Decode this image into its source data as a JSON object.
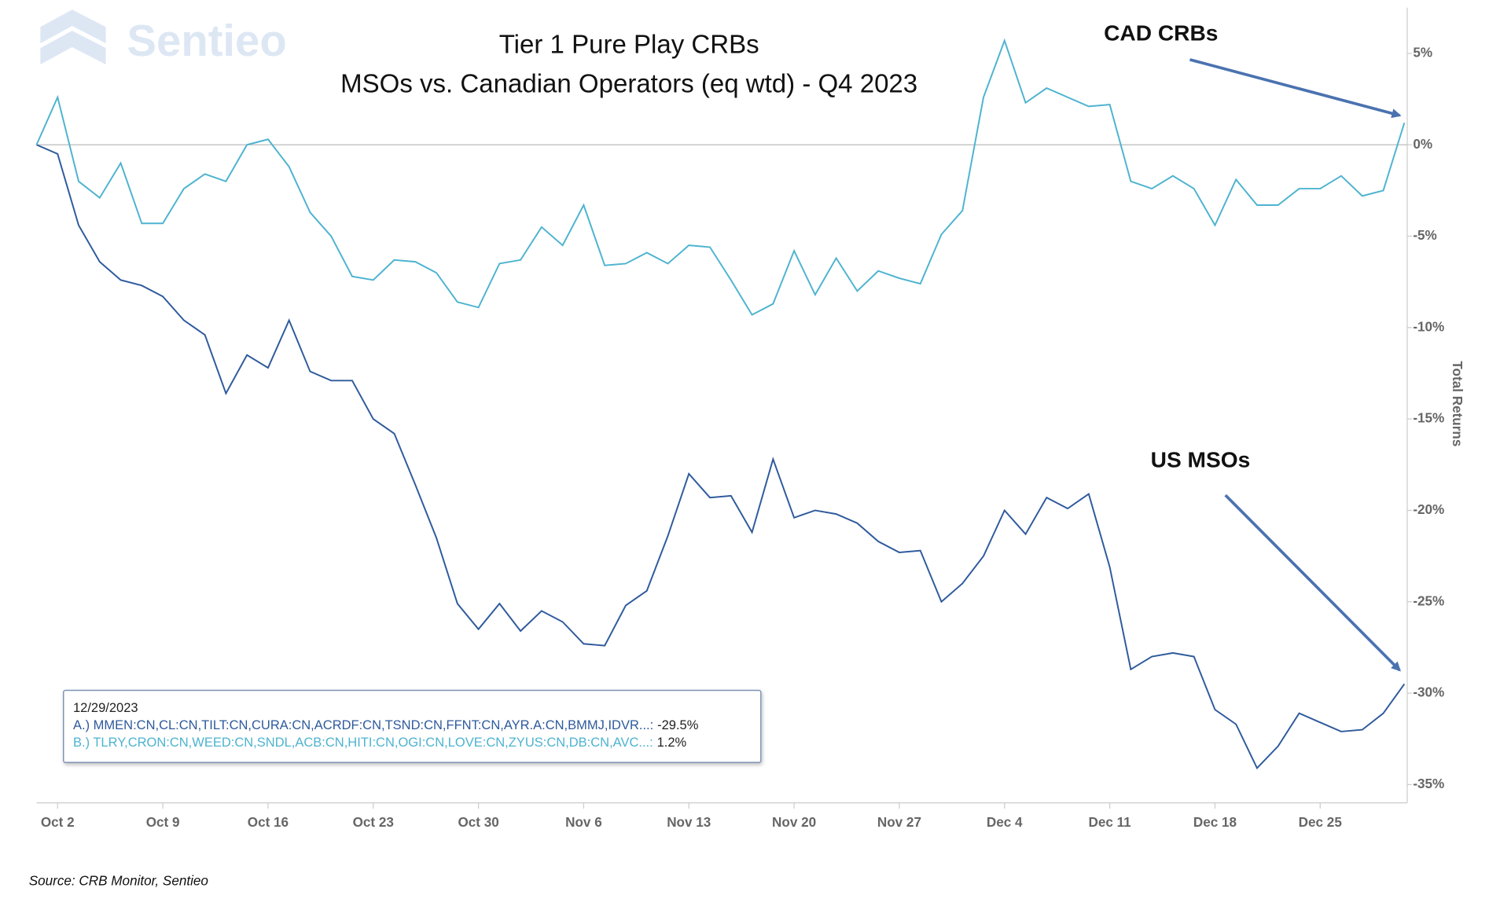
{
  "chart_data": {
    "type": "line",
    "title": "Tier 1 Pure Play CRBs",
    "subtitle": "MSOs vs. Canadian Operators (eq wtd) - Q4 2023",
    "watermark": "Sentieo",
    "y_axis_label": "Total Returns",
    "source": "Source: CRB Monitor, Sentieo",
    "x": [
      "2023-09-29",
      "2023-10-02",
      "2023-10-03",
      "2023-10-04",
      "2023-10-05",
      "2023-10-06",
      "2023-10-09",
      "2023-10-10",
      "2023-10-11",
      "2023-10-12",
      "2023-10-13",
      "2023-10-16",
      "2023-10-17",
      "2023-10-18",
      "2023-10-19",
      "2023-10-20",
      "2023-10-23",
      "2023-10-24",
      "2023-10-25",
      "2023-10-26",
      "2023-10-27",
      "2023-10-30",
      "2023-10-31",
      "2023-11-01",
      "2023-11-02",
      "2023-11-03",
      "2023-11-06",
      "2023-11-07",
      "2023-11-08",
      "2023-11-09",
      "2023-11-10",
      "2023-11-13",
      "2023-11-14",
      "2023-11-15",
      "2023-11-16",
      "2023-11-17",
      "2023-11-20",
      "2023-11-21",
      "2023-11-22",
      "2023-11-23",
      "2023-11-24",
      "2023-11-27",
      "2023-11-28",
      "2023-11-29",
      "2023-11-30",
      "2023-12-01",
      "2023-12-04",
      "2023-12-05",
      "2023-12-06",
      "2023-12-07",
      "2023-12-08",
      "2023-12-11",
      "2023-12-12",
      "2023-12-13",
      "2023-12-14",
      "2023-12-15",
      "2023-12-18",
      "2023-12-19",
      "2023-12-20",
      "2023-12-21",
      "2023-12-22",
      "2023-12-25",
      "2023-12-26",
      "2023-12-27",
      "2023-12-28",
      "2023-12-29"
    ],
    "series": [
      {
        "name": "US MSOs",
        "color": "#2e5a9c",
        "values": [
          0,
          -0.5,
          -4.4,
          -6.4,
          -7.4,
          -7.7,
          -8.3,
          -9.6,
          -10.4,
          -13.6,
          -11.5,
          -12.2,
          -9.6,
          -12.4,
          -12.9,
          -12.9,
          -15.0,
          -15.8,
          -18.6,
          -21.5,
          -25.1,
          -26.5,
          -25.1,
          -26.6,
          -25.5,
          -26.1,
          -27.3,
          -27.4,
          -25.2,
          -24.4,
          -21.4,
          -18.0,
          -19.3,
          -19.2,
          -21.2,
          -17.2,
          -20.4,
          -20.0,
          -20.2,
          -20.7,
          -21.7,
          -22.3,
          -22.2,
          -25.0,
          -24.0,
          -22.5,
          -20.0,
          -21.3,
          -19.3,
          -19.9,
          -19.1,
          -23.1,
          -28.7,
          -28.0,
          -27.8,
          -28.0,
          -30.9,
          -31.7,
          -34.1,
          -32.9,
          -31.1,
          -31.6,
          -32.1,
          -32.0,
          -31.1,
          -29.5
        ]
      },
      {
        "name": "CAD CRBs",
        "color": "#4db3d0",
        "values": [
          0,
          2.6,
          -2.0,
          -2.9,
          -1.0,
          -4.3,
          -4.3,
          -2.4,
          -1.6,
          -2.0,
          0.0,
          0.3,
          -1.2,
          -3.7,
          -5.0,
          -7.2,
          -7.4,
          -6.3,
          -6.4,
          -7.0,
          -8.6,
          -8.9,
          -6.5,
          -6.3,
          -4.5,
          -5.5,
          -3.3,
          -6.6,
          -6.5,
          -5.9,
          -6.5,
          -5.5,
          -5.6,
          -7.4,
          -9.3,
          -8.7,
          -5.8,
          -8.2,
          -6.2,
          -8.0,
          -6.9,
          -7.3,
          -7.6,
          -4.9,
          -3.6,
          2.6,
          5.7,
          2.3,
          3.1,
          2.6,
          2.1,
          2.2,
          -2.0,
          -2.4,
          -1.7,
          -2.4,
          -4.4,
          -1.9,
          -3.3,
          -3.3,
          -2.4,
          -2.4,
          -1.7,
          -2.8,
          -2.5,
          1.2
        ]
      }
    ],
    "ylim": [
      -36,
      7.5
    ],
    "yticks": [
      {
        "value": 5,
        "label": "5%"
      },
      {
        "value": 0,
        "label": "0%"
      },
      {
        "value": -5,
        "label": "-5%"
      },
      {
        "value": -10,
        "label": "-10%"
      },
      {
        "value": -15,
        "label": "-15%"
      },
      {
        "value": -20,
        "label": "-20%"
      },
      {
        "value": -25,
        "label": "-25%"
      },
      {
        "value": -30,
        "label": "-30%"
      },
      {
        "value": -35,
        "label": "-35%"
      }
    ],
    "xticks": [
      {
        "value": "2023-10-02",
        "label": "Oct 2"
      },
      {
        "value": "2023-10-09",
        "label": "Oct 9"
      },
      {
        "value": "2023-10-16",
        "label": "Oct 16"
      },
      {
        "value": "2023-10-23",
        "label": "Oct 23"
      },
      {
        "value": "2023-10-30",
        "label": "Oct 30"
      },
      {
        "value": "2023-11-06",
        "label": "Nov 6"
      },
      {
        "value": "2023-11-13",
        "label": "Nov 13"
      },
      {
        "value": "2023-11-20",
        "label": "Nov 20"
      },
      {
        "value": "2023-11-27",
        "label": "Nov 27"
      },
      {
        "value": "2023-12-04",
        "label": "Dec 4"
      },
      {
        "value": "2023-12-11",
        "label": "Dec 11"
      },
      {
        "value": "2023-12-18",
        "label": "Dec 18"
      },
      {
        "value": "2023-12-25",
        "label": "Dec 25"
      }
    ],
    "grid": false,
    "tooltip": {
      "date": "12/29/2023",
      "items": [
        {
          "text": "A.) MMEN:CN,CL:CN,TILT:CN,CURA:CN,ACRDF:CN,TSND:CN,FFNT:CN,AYR.A:CN,BMMJ,IDVR...:",
          "value_label": "-29.5%"
        },
        {
          "text": "B.) TLRY,CRON:CN,WEED:CN,SNDL,ACB:CN,HITI:CN,OGI:CN,LOVE:CN,ZYUS:CN,DB:CN,AVC...:",
          "value_label": "1.2%"
        }
      ]
    }
  }
}
